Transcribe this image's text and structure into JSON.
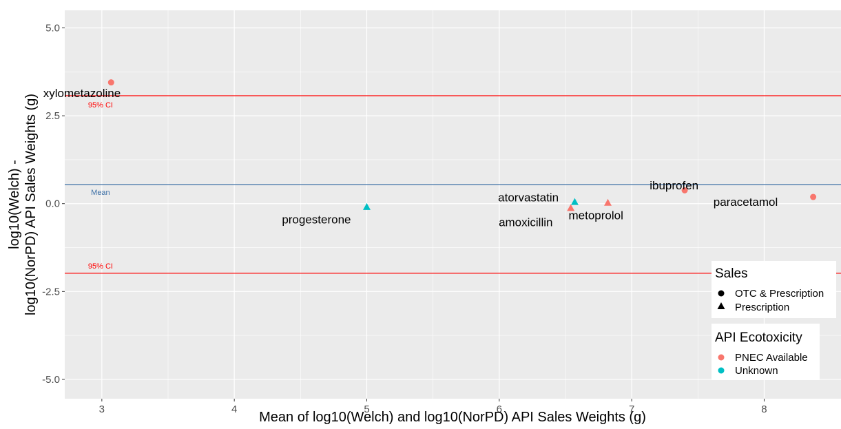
{
  "chart_data": {
    "type": "scatter",
    "title": "",
    "xlabel": "Mean of log10(Welch) and log10(NorPD) API Sales Weights (g)",
    "ylabel_lines": [
      "log10(Welch) -",
      "log10(NorPD) API Sales Weights (g)"
    ],
    "xlim": [
      2.72,
      8.58
    ],
    "ylim": [
      -5.55,
      5.5
    ],
    "x_ticks": [
      3,
      4,
      5,
      6,
      7,
      8
    ],
    "y_ticks": [
      5.0,
      2.5,
      0.0,
      -2.5,
      -5.0
    ],
    "x_tick_labels": [
      "3",
      "4",
      "5",
      "6",
      "7",
      "8"
    ],
    "y_tick_labels": [
      "5.0",
      "2.5",
      "0.0",
      "-2.5",
      "-5.0"
    ],
    "grid": true,
    "reference_lines": [
      {
        "name": "upper",
        "y": 3.07,
        "color": "#ff0000",
        "label": "95% CI",
        "label_x": 2.99,
        "label_y": 2.82
      },
      {
        "name": "mean",
        "y": 0.54,
        "color": "#3a6ea5",
        "label": "Mean",
        "label_x": 2.99,
        "label_y": 0.33
      },
      {
        "name": "lower",
        "y": -1.98,
        "color": "#ff0000",
        "label": "95% CI",
        "label_x": 2.99,
        "label_y": -1.77
      }
    ],
    "points": [
      {
        "label": "xylometazoline",
        "x": 3.07,
        "y": 3.45,
        "sales": "OTC & Prescription",
        "ecotoxicity": "PNEC Available",
        "label_x": 2.85,
        "label_y": 3.15
      },
      {
        "label": "progesterone",
        "x": 5.0,
        "y": -0.09,
        "sales": "Prescription",
        "ecotoxicity": "Unknown",
        "label_x": 4.62,
        "label_y": -0.45
      },
      {
        "label": "atorvastatin",
        "x": 6.57,
        "y": 0.05,
        "sales": "Prescription",
        "ecotoxicity": "Unknown",
        "label_x": 6.22,
        "label_y": 0.18
      },
      {
        "label": "amoxicillin",
        "x": 6.54,
        "y": -0.12,
        "sales": "Prescription",
        "ecotoxicity": "PNEC Available",
        "label_x": 6.2,
        "label_y": -0.52
      },
      {
        "label": "metoprolol",
        "x": 6.82,
        "y": 0.03,
        "sales": "Prescription",
        "ecotoxicity": "PNEC Available",
        "label_x": 6.73,
        "label_y": -0.33
      },
      {
        "label": "ibuprofen",
        "x": 7.4,
        "y": 0.38,
        "sales": "OTC & Prescription",
        "ecotoxicity": "PNEC Available",
        "label_x": 7.32,
        "label_y": 0.52
      },
      {
        "label": "paracetamol",
        "x": 8.37,
        "y": 0.19,
        "sales": "OTC & Prescription",
        "ecotoxicity": "PNEC Available",
        "label_x": 7.86,
        "label_y": 0.05
      }
    ],
    "legend": {
      "placement": "bottom-right",
      "sales": {
        "title": "Sales",
        "items": [
          {
            "label": "OTC & Prescription",
            "shape": "circle"
          },
          {
            "label": "Prescription",
            "shape": "triangle"
          }
        ]
      },
      "ecotoxicity": {
        "title": "API Ecotoxicity",
        "items": [
          {
            "label": "PNEC Available",
            "color": "#f8766d"
          },
          {
            "label": "Unknown",
            "color": "#00bfc4"
          }
        ]
      }
    }
  },
  "colors": {
    "panel_background": "#ebebeb",
    "gridline": "#ffffff",
    "pnec_available": "#f8766d",
    "unknown": "#00bfc4",
    "ci_line": "#ff0000",
    "mean_line": "#3a6ea5"
  }
}
